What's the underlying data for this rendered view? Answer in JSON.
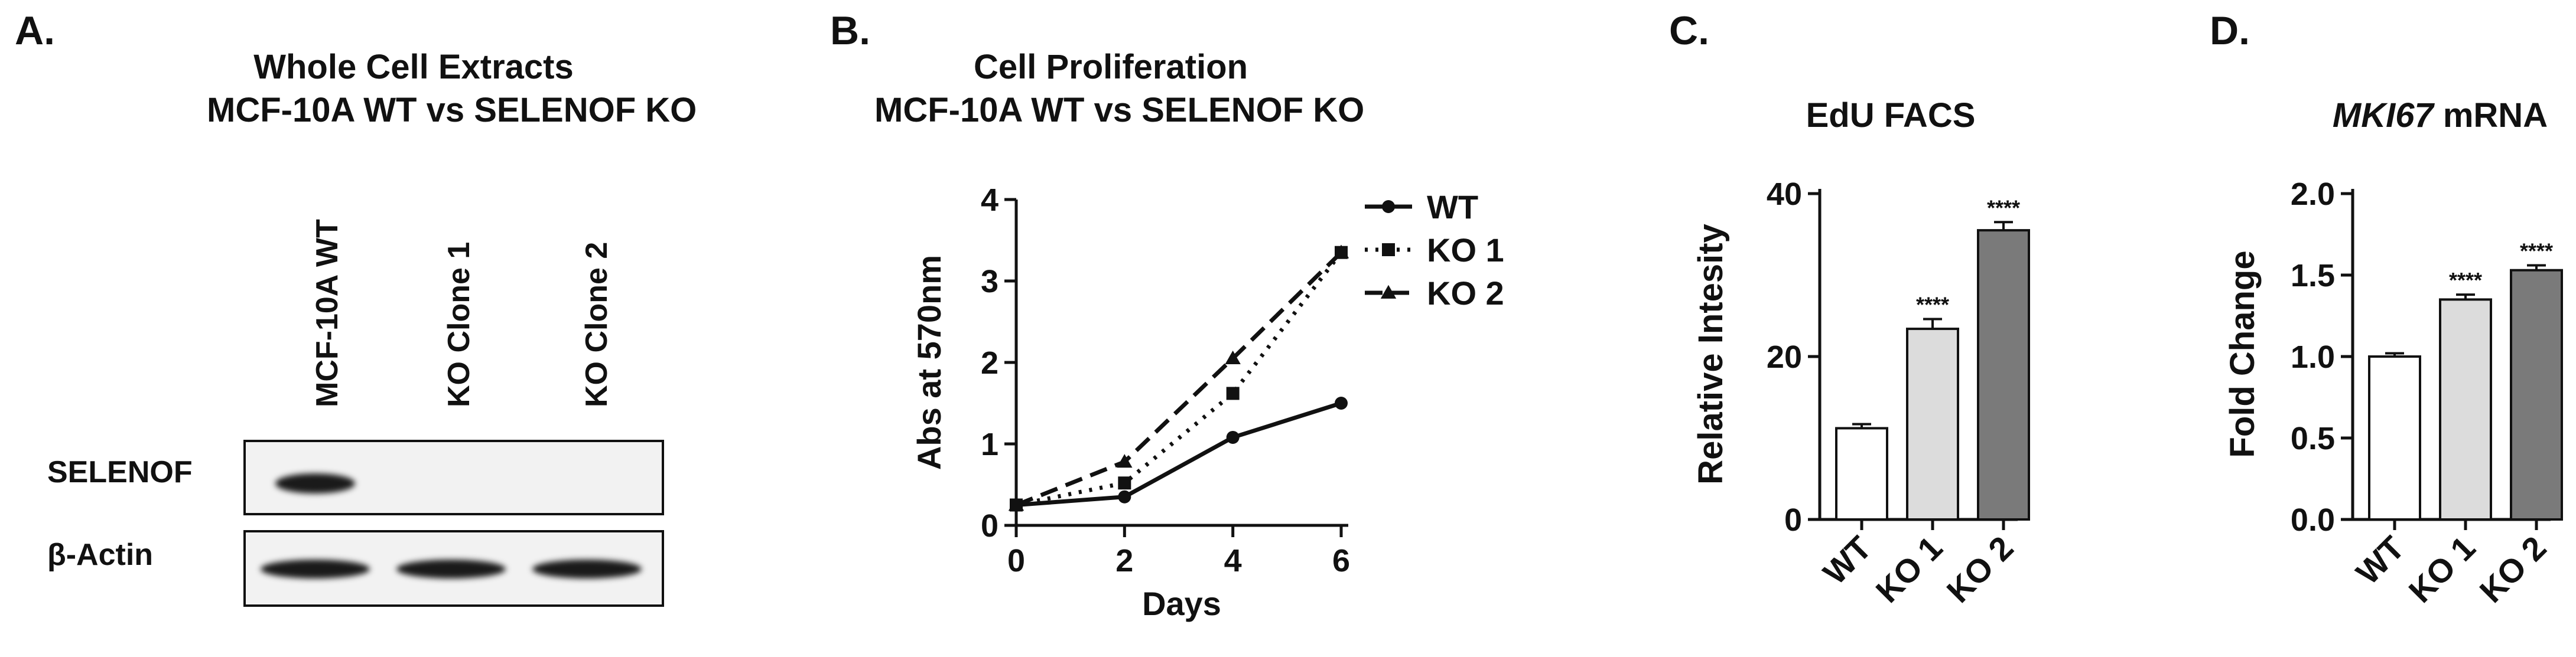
{
  "panels": {
    "a": {
      "letter": "A.",
      "title_line1": "Whole Cell Extracts",
      "title_line2": "MCF-10A WT vs SELENOF KO",
      "lanes": [
        "MCF-10A WT",
        "KO Clone 1",
        "KO Clone 2"
      ],
      "rows": [
        {
          "label": "SELENOF",
          "band_intensity": [
            1.0,
            0.0,
            0.0
          ]
        },
        {
          "label": "β-Actin",
          "band_intensity": [
            1.0,
            1.0,
            1.0
          ]
        }
      ]
    },
    "b": {
      "letter": "B."
    },
    "c": {
      "letter": "C."
    },
    "d": {
      "letter": "D."
    }
  },
  "chart_data": [
    {
      "type": "line",
      "title_line1": "Cell Proliferation",
      "title_line2": "MCF-10A WT vs SELENOF KO",
      "xlabel": "Days",
      "ylabel": "Abs at 570nm",
      "x": [
        0,
        2,
        4,
        6
      ],
      "xlim": [
        0,
        6
      ],
      "ylim": [
        0,
        4
      ],
      "xticks": [
        "0",
        "2",
        "4",
        "6"
      ],
      "yticks": [
        "0",
        "1",
        "2",
        "3",
        "4"
      ],
      "legend": "right",
      "series": [
        {
          "name": "WT",
          "values": [
            0.25,
            0.35,
            1.08,
            1.5
          ],
          "marker": "circle",
          "dash": "solid"
        },
        {
          "name": "KO 1",
          "values": [
            0.25,
            0.52,
            1.62,
            3.35
          ],
          "marker": "square",
          "dash": "dotted"
        },
        {
          "name": "KO 2",
          "values": [
            0.25,
            0.78,
            2.05,
            3.35
          ],
          "marker": "triangle",
          "dash": "dashed"
        }
      ]
    },
    {
      "type": "bar",
      "title": "EdU FACS",
      "ylabel": "Relative Intesity",
      "categories": [
        "WT",
        "KO 1",
        "KO 2"
      ],
      "values": [
        11.2,
        23.4,
        35.5
      ],
      "errors": [
        0.5,
        1.2,
        1.0
      ],
      "significance": [
        "",
        "****",
        "****"
      ],
      "colors": [
        "#ffffff",
        "#dcdcdc",
        "#7a7a7a"
      ],
      "ylim": [
        0,
        40
      ],
      "yticks": [
        "0",
        "20",
        "40"
      ]
    },
    {
      "type": "bar",
      "title_italic": "MKI67",
      "title_rest": " mRNA",
      "ylabel": "Fold Change",
      "categories": [
        "WT",
        "KO 1",
        "KO 2"
      ],
      "values": [
        1.0,
        1.35,
        1.53
      ],
      "errors": [
        0.02,
        0.03,
        0.03
      ],
      "significance": [
        "",
        "****",
        "****"
      ],
      "colors": [
        "#ffffff",
        "#dcdcdc",
        "#7a7a7a"
      ],
      "ylim": [
        0,
        2.0
      ],
      "yticks": [
        "0.0",
        "0.5",
        "1.0",
        "1.5",
        "2.0"
      ]
    }
  ]
}
